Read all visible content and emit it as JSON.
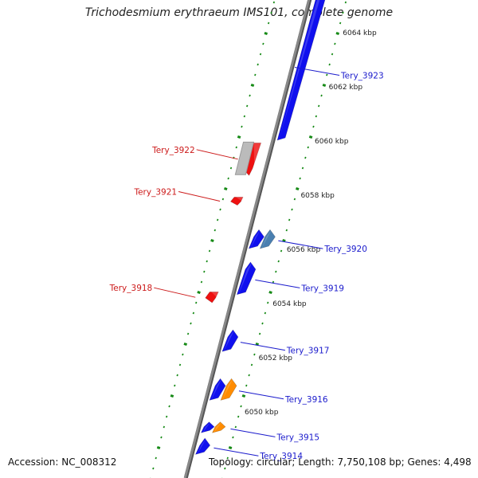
{
  "title": "Trichodesmium erythraeum IMS101, complete genome",
  "footer": {
    "accession": "Accession: NC_008312",
    "summary": "Topology: circular; Length: 7,750,108 bp; Genes: 4,498"
  },
  "scale_unit": "kbp",
  "ticks": [
    6050,
    6052,
    6054,
    6056,
    6058,
    6060,
    6062,
    6064
  ],
  "colors": {
    "forward": "#1010ee",
    "reverse": "#ee1010",
    "other_forward": "#ff8c00",
    "pseudo": "#4a7fb0",
    "backbone": "#888888",
    "tick": "#168a16"
  },
  "genes": [
    {
      "label": "Tery_3914",
      "strand": "+",
      "start": 6048.4,
      "end": 6049.0,
      "color": "forward"
    },
    {
      "label": "",
      "strand": "+",
      "start": 6049.2,
      "end": 6049.6,
      "color": "forward"
    },
    {
      "label": "Tery_3915",
      "strand": "+",
      "start": 6049.2,
      "end": 6049.6,
      "color": "other_forward"
    },
    {
      "label": "",
      "strand": "+",
      "start": 6050.4,
      "end": 6051.2,
      "color": "forward"
    },
    {
      "label": "Tery_3916",
      "strand": "+",
      "start": 6050.4,
      "end": 6051.2,
      "color": "other_forward"
    },
    {
      "label": "Tery_3917",
      "strand": "+",
      "start": 6052.2,
      "end": 6053.0,
      "color": "forward"
    },
    {
      "label": "Tery_3918",
      "strand": "-",
      "start": 6054.0,
      "end": 6054.4,
      "color": "reverse"
    },
    {
      "label": "Tery_3919",
      "strand": "+",
      "start": 6054.3,
      "end": 6055.5,
      "color": "forward"
    },
    {
      "label": "",
      "strand": "+",
      "start": 6056.0,
      "end": 6056.7,
      "color": "forward"
    },
    {
      "label": "Tery_3920",
      "strand": "+",
      "start": 6056.0,
      "end": 6056.7,
      "color": "pseudo"
    },
    {
      "label": "Tery_3921",
      "strand": "-",
      "start": 6057.6,
      "end": 6057.9,
      "color": "reverse"
    },
    {
      "label": "Tery_3922",
      "strand": "-",
      "start": 6058.7,
      "end": 6059.9,
      "color": "reverse"
    },
    {
      "label": "Tery_3923",
      "strand": "+",
      "start": 6060.0,
      "end": 6065.5,
      "color": "forward"
    }
  ]
}
